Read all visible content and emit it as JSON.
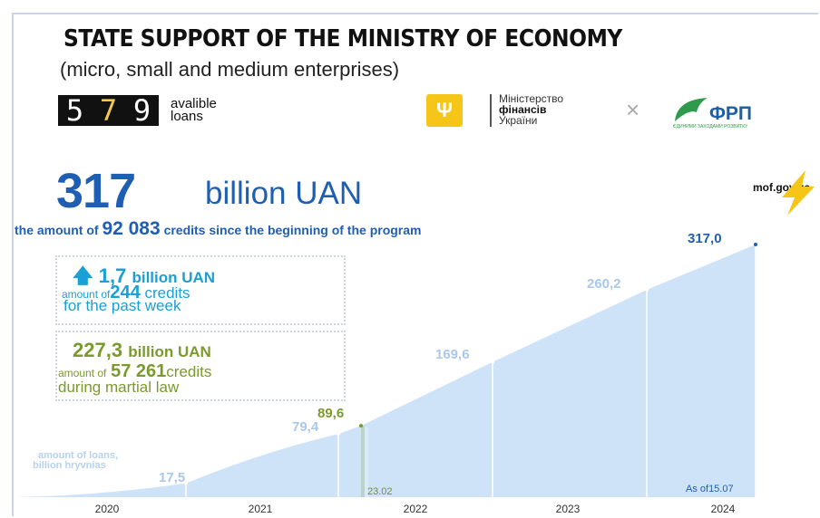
{
  "header": {
    "title": "STATE SUPPORT OF THE MINISTRY OF ECONOMY",
    "subtitle": "(micro, small and medium enterprises)"
  },
  "counter": {
    "digits": [
      "5",
      "7",
      "9"
    ],
    "label_line1": "avalible",
    "label_line2": "loans"
  },
  "logos": {
    "ministry_line1": "Міністерство",
    "ministry_line2": "фінансів",
    "ministry_line3": "України",
    "times": "×",
    "frp_name": "ФРП",
    "frp_sub": "ЄДИНИМИ ЗАХОДАМИ РОЗВИТКУ",
    "website": "mof.gov.ua"
  },
  "summary": {
    "total_value": "317",
    "total_unit": "billion UAN",
    "credits_prefix": "the amount of",
    "credits_count": "92 083",
    "credits_suffix": "credits since the beginning of the program"
  },
  "week_box": {
    "arrow": "🡅",
    "value": "1,7",
    "unit": "billion UAN",
    "amount_prefix": "amount of",
    "credits": "244",
    "credits_word": "credits",
    "period": "for the past week"
  },
  "war_box": {
    "value": "227,3",
    "unit": "billion UAN",
    "amount_prefix": "amount of",
    "credits": "57 261",
    "credits_word": "credits",
    "period": "during martial law"
  },
  "chart_data": {
    "type": "area",
    "ylabel_line1": "amount of loans,",
    "ylabel_line2": "billion hryvnias",
    "x_ticks": [
      "2020",
      "2021",
      "2022",
      "2023",
      "2024"
    ],
    "points": [
      {
        "period": "2020",
        "value": 17.5,
        "label": "17,5"
      },
      {
        "period": "2021",
        "value": 79.4,
        "label": "79,4"
      },
      {
        "period": "23.02.2022",
        "value": 89.6,
        "label": "89,6"
      },
      {
        "period": "2022",
        "value": 169.6,
        "label": "169,6"
      },
      {
        "period": "2023",
        "value": 260.2,
        "label": "260,2"
      },
      {
        "period": "15.07.2024",
        "value": 317.0,
        "label": "317,0"
      }
    ],
    "marker_war": "23.02",
    "marker_asof": "As of15.07",
    "ylim": [
      0,
      317
    ],
    "colors": {
      "fill": "#cfe3f8",
      "war_fill": "#b9d3c4",
      "label": "#a9c8ea",
      "green": "#7a9a2c"
    }
  }
}
